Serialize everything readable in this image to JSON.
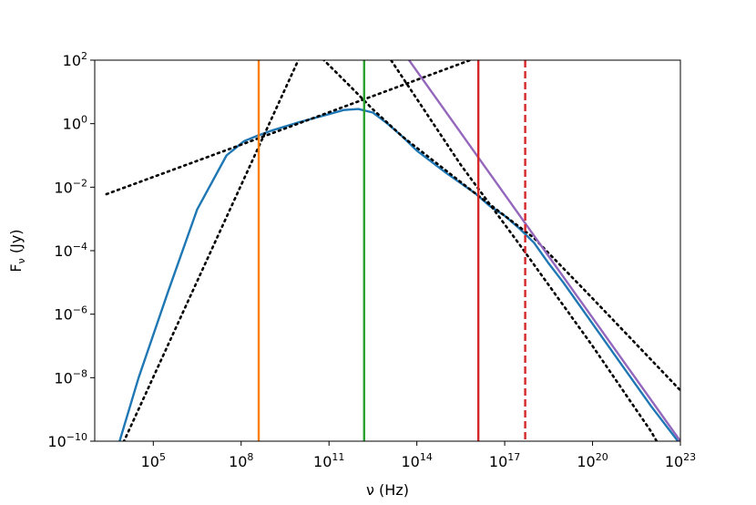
{
  "chart_data": {
    "type": "line",
    "xlabel": "ν (Hz)",
    "ylabel": "F_ν (Jy)",
    "x_scale": "log",
    "y_scale": "log",
    "xlim_log10": [
      3.0,
      23.0
    ],
    "ylim_log10": [
      -10.0,
      2.0
    ],
    "x_ticks": [
      {
        "base": "10",
        "exp": "5",
        "log10": 5
      },
      {
        "base": "10",
        "exp": "8",
        "log10": 8
      },
      {
        "base": "10",
        "exp": "11",
        "log10": 11
      },
      {
        "base": "10",
        "exp": "14",
        "log10": 14
      },
      {
        "base": "10",
        "exp": "17",
        "log10": 17
      },
      {
        "base": "10",
        "exp": "20",
        "log10": 20
      },
      {
        "base": "10",
        "exp": "23",
        "log10": 23
      }
    ],
    "y_ticks": [
      {
        "base": "10",
        "exp": "2",
        "log10": 2
      },
      {
        "base": "10",
        "exp": "0",
        "log10": 0
      },
      {
        "base": "10",
        "exp": "−2",
        "log10": -2
      },
      {
        "base": "10",
        "exp": "−4",
        "log10": -4
      },
      {
        "base": "10",
        "exp": "−6",
        "log10": -6
      },
      {
        "base": "10",
        "exp": "−8",
        "log10": -8
      },
      {
        "base": "10",
        "exp": "−10",
        "log10": -10
      }
    ],
    "grid": false,
    "legend": "none",
    "series": [
      {
        "color": "#1f77b4",
        "style": "solid",
        "points_log10": [
          [
            3.85,
            -10
          ],
          [
            4.5,
            -8.0
          ],
          [
            5.5,
            -5.3
          ],
          [
            6.5,
            -2.7
          ],
          [
            7.5,
            -1.0
          ],
          [
            8.1,
            -0.55
          ],
          [
            8.5,
            -0.4
          ],
          [
            9.0,
            -0.23
          ],
          [
            10.0,
            0.05
          ],
          [
            11.0,
            0.3
          ],
          [
            11.5,
            0.43
          ],
          [
            12.0,
            0.46
          ],
          [
            12.5,
            0.35
          ],
          [
            13.0,
            0.0
          ],
          [
            13.5,
            -0.4
          ],
          [
            14.0,
            -0.85
          ],
          [
            15.0,
            -1.55
          ],
          [
            16.0,
            -2.2
          ],
          [
            16.5,
            -2.6
          ],
          [
            17.0,
            -2.9
          ],
          [
            17.5,
            -3.3
          ],
          [
            18.0,
            -3.75
          ],
          [
            18.5,
            -4.4
          ],
          [
            19.0,
            -5.0
          ],
          [
            20.0,
            -6.3
          ],
          [
            21.0,
            -7.6
          ],
          [
            22.0,
            -8.9
          ],
          [
            23.0,
            -10.1
          ]
        ]
      },
      {
        "color": "#000000",
        "style": "dotted",
        "points_log10": [
          [
            3.4,
            -2.22
          ],
          [
            8.3,
            -0.56
          ],
          [
            16.7,
            2.3
          ]
        ]
      },
      {
        "color": "#000000",
        "style": "dotted",
        "points_log10": [
          [
            3.9,
            -10.2
          ],
          [
            10.1,
            2.3
          ]
        ]
      },
      {
        "color": "#000000",
        "style": "dotted",
        "points_log10": [
          [
            10.5,
            2.3
          ],
          [
            11.7,
            1.2
          ],
          [
            12.5,
            0.45
          ],
          [
            13.5,
            -0.4
          ],
          [
            16.0,
            -2.2
          ],
          [
            18.0,
            -3.6
          ],
          [
            20.0,
            -5.5
          ],
          [
            23.0,
            -8.4
          ]
        ]
      },
      {
        "color": "#000000",
        "style": "dotted",
        "points_log10": [
          [
            12.9,
            2.3
          ],
          [
            15.5,
            -1.3
          ],
          [
            17.5,
            -3.8
          ],
          [
            20.0,
            -7.0
          ],
          [
            22.0,
            -9.7
          ],
          [
            22.5,
            -10.5
          ]
        ]
      },
      {
        "color": "#9467bd",
        "style": "solid",
        "points_log10": [
          [
            13.5,
            2.3
          ],
          [
            23.0,
            -10.0
          ]
        ]
      }
    ],
    "vertical_lines": [
      {
        "color": "#ff7f0e",
        "style": "solid",
        "x_log10": 8.6
      },
      {
        "color": "#2ca02c",
        "style": "solid",
        "x_log10": 12.2
      },
      {
        "color": "#d62728",
        "style": "solid",
        "x_log10": 16.1
      },
      {
        "color": "#d62728",
        "style": "dashed",
        "x_log10": 17.7
      }
    ]
  }
}
